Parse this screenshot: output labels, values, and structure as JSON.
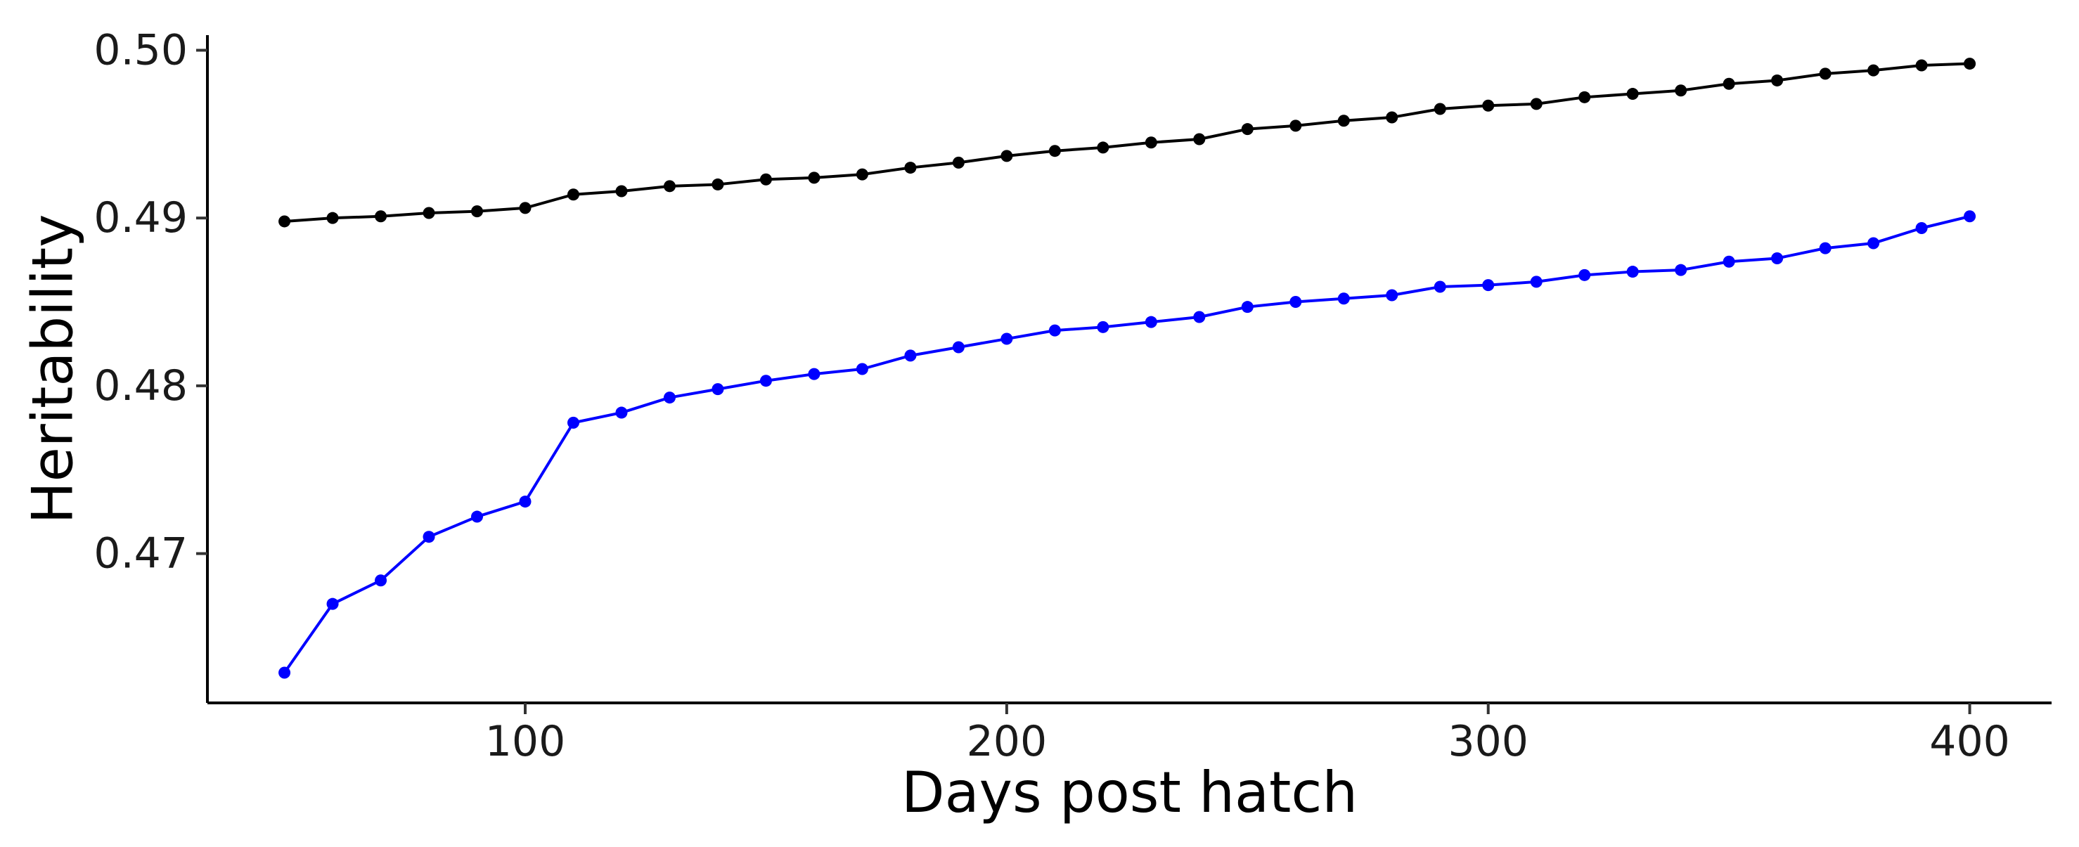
{
  "chart_data": {
    "type": "line",
    "title": "",
    "xlabel": "Days post hatch",
    "ylabel": "Heritability",
    "xlim": [
      34,
      417
    ],
    "ylim": [
      0.4611,
      0.5009
    ],
    "x_ticks": [
      100,
      200,
      300,
      400
    ],
    "y_ticks": [
      0.47,
      0.48,
      0.49,
      0.5
    ],
    "x_tick_labels": [
      "100",
      "200",
      "300",
      "400"
    ],
    "y_tick_labels": [
      "0.47",
      "0.48",
      "0.49",
      "0.50"
    ],
    "grid": false,
    "legend": "none",
    "x": [
      50,
      60,
      70,
      80,
      90,
      100,
      110,
      120,
      130,
      140,
      150,
      160,
      170,
      180,
      190,
      200,
      210,
      220,
      230,
      240,
      250,
      260,
      270,
      280,
      290,
      300,
      310,
      320,
      330,
      340,
      350,
      360,
      370,
      380,
      390,
      400
    ],
    "series": [
      {
        "color": "#000000",
        "values": [
          0.4898,
          0.49,
          0.4901,
          0.4903,
          0.4904,
          0.4906,
          0.4914,
          0.4916,
          0.4919,
          0.492,
          0.4923,
          0.4924,
          0.4926,
          0.493,
          0.4933,
          0.4937,
          0.494,
          0.4942,
          0.4945,
          0.4947,
          0.4953,
          0.4955,
          0.4958,
          0.496,
          0.4965,
          0.4967,
          0.4968,
          0.4972,
          0.4974,
          0.4976,
          0.498,
          0.4982,
          0.4986,
          0.4988,
          0.4991,
          0.4992
        ]
      },
      {
        "color": "#0000ff",
        "values": [
          0.4629,
          0.467,
          0.4684,
          0.471,
          0.4722,
          0.4731,
          0.4778,
          0.4784,
          0.4793,
          0.4798,
          0.4803,
          0.4807,
          0.481,
          0.4818,
          0.4823,
          0.4828,
          0.4833,
          0.4835,
          0.4838,
          0.4841,
          0.4847,
          0.485,
          0.4852,
          0.4854,
          0.4859,
          0.486,
          0.4862,
          0.4866,
          0.4868,
          0.4869,
          0.4874,
          0.4876,
          0.4882,
          0.4885,
          0.4894,
          0.4901
        ]
      }
    ]
  }
}
